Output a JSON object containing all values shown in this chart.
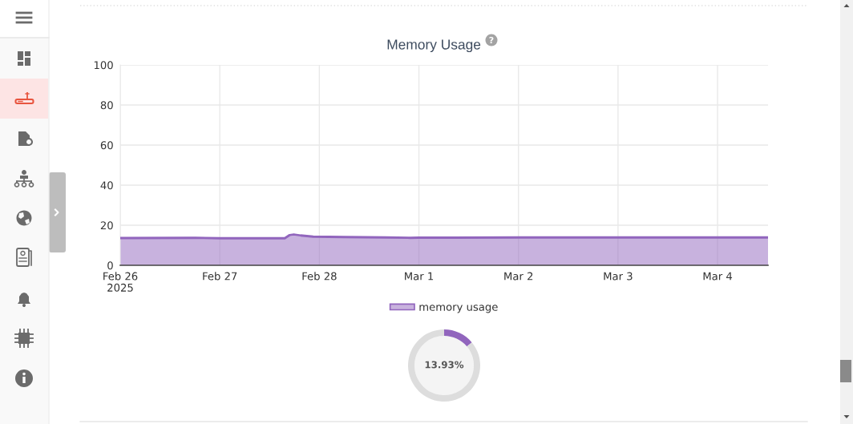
{
  "chart_data": [
    {
      "type": "area",
      "title": "Memory Usage",
      "x": [
        "2025-02-26T00:00",
        "2025-02-26T18:00",
        "2025-02-27T00:00",
        "2025-02-27T15:40",
        "2025-02-27T16:50",
        "2025-02-27T17:50",
        "2025-02-27T19:30",
        "2025-02-27T22:30",
        "2025-02-28T06:00",
        "2025-02-28T16:00",
        "2025-02-28T22:00",
        "2025-03-01T00:00",
        "2025-03-01T08:00",
        "2025-03-02T00:00",
        "2025-03-03T00:00",
        "2025-03-04T00:00",
        "2025-03-04T12:10"
      ],
      "series": [
        {
          "name": "memory usage",
          "color": "#9165bd",
          "values": [
            13.6,
            13.7,
            13.5,
            13.5,
            15.1,
            15.4,
            14.9,
            14.3,
            14.1,
            13.9,
            13.7,
            13.8,
            13.8,
            13.9,
            13.9,
            13.9,
            13.9
          ]
        }
      ],
      "xlim": [
        "2025-02-26T00:00",
        "2025-03-04T12:10"
      ],
      "xticks": [
        {
          "value": "2025-02-26",
          "label": "Feb 26\n2025"
        },
        {
          "value": "2025-02-27",
          "label": "Feb 27"
        },
        {
          "value": "2025-02-28",
          "label": "Feb 28"
        },
        {
          "value": "2025-03-01",
          "label": "Mar 1"
        },
        {
          "value": "2025-03-02",
          "label": "Mar 2"
        },
        {
          "value": "2025-03-03",
          "label": "Mar 3"
        },
        {
          "value": "2025-03-04",
          "label": "Mar 4"
        }
      ],
      "ylim": [
        0,
        100
      ],
      "yticks": [
        0,
        20,
        40,
        60,
        80,
        100
      ],
      "grid": true,
      "legend": "bottom"
    },
    {
      "type": "donut",
      "categories": [
        null,
        null
      ],
      "values": [
        13.93,
        86.07
      ],
      "colors": [
        "#9165bd",
        "#dddddd"
      ],
      "value_labels": [
        "13.93%",
        null
      ]
    }
  ]
}
